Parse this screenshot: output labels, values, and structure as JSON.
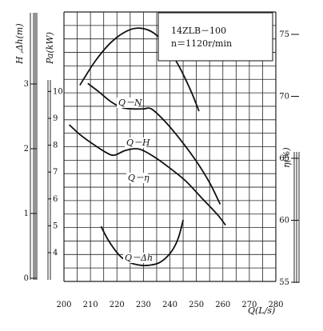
{
  "chart_data": {
    "type": "line",
    "info_box": {
      "model": "14ZLB－100",
      "speed": "n＝1120r/min"
    },
    "x_axis": {
      "label": "Q(L/s)",
      "range": [
        200,
        280
      ],
      "ticks": [
        "200",
        "210",
        "220",
        "230",
        "240",
        "250",
        "260",
        "270",
        "280"
      ]
    },
    "left_axes": [
      {
        "label": "H ,Δh(m)",
        "range": [
          0,
          3.5
        ],
        "ticks": [
          "0",
          "1",
          "2",
          "3"
        ]
      },
      {
        "label": "Pa(kW)",
        "range": [
          3,
          11
        ],
        "ticks": [
          "4",
          "5",
          "6",
          "7",
          "8",
          "9",
          "10"
        ]
      }
    ],
    "right_axis": {
      "label": "η(%)",
      "range": [
        55,
        78
      ],
      "ticks": [
        "55",
        "60",
        "65",
        "70",
        "75"
      ]
    },
    "series": [
      {
        "name": "Q－N",
        "axis": "Pa",
        "x": [
          209,
          213,
          218,
          222,
          226,
          230,
          233,
          238,
          244,
          250,
          255,
          259
        ],
        "y": [
          10.3,
          10.0,
          9.6,
          9.4,
          9.35,
          9.35,
          9.35,
          8.9,
          8.2,
          7.4,
          6.6,
          5.8
        ]
      },
      {
        "name": "Q－H",
        "axis": "H",
        "x": [
          202,
          206,
          211,
          216,
          219,
          223,
          227,
          230,
          235,
          240,
          246,
          252,
          258,
          261
        ],
        "y": [
          2.37,
          2.22,
          2.07,
          1.94,
          1.9,
          1.97,
          2.0,
          1.97,
          1.85,
          1.7,
          1.5,
          1.24,
          0.98,
          0.82
        ]
      },
      {
        "name": "Q－η",
        "axis": "eta",
        "x": [
          206,
          212,
          218,
          224,
          229,
          234,
          239,
          244,
          248,
          251
        ],
        "y": [
          70.9,
          72.9,
          74.4,
          75.3,
          75.5,
          75.1,
          74.0,
          72.2,
          70.4,
          68.8
        ]
      },
      {
        "name": "Q－Δh",
        "axis": "H",
        "x": [
          214,
          217,
          221,
          225,
          229,
          232,
          236,
          240,
          243,
          245
        ],
        "y": [
          0.8,
          0.57,
          0.35,
          0.24,
          0.2,
          0.2,
          0.24,
          0.38,
          0.6,
          0.9
        ]
      }
    ]
  }
}
